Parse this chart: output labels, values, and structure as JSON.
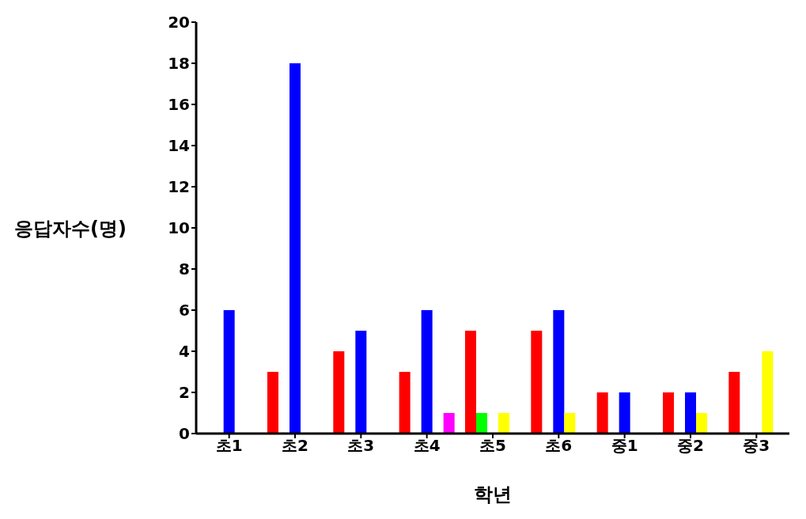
{
  "chart_data": {
    "type": "bar",
    "xlabel": "학년",
    "ylabel": "응답자수(명)",
    "categories": [
      "초1",
      "초2",
      "초3",
      "초4",
      "초5",
      "초6",
      "중1",
      "중2",
      "중3"
    ],
    "series": [
      {
        "color": "#ff0000",
        "values": [
          null,
          3,
          4,
          3,
          5,
          5,
          2,
          2,
          3
        ]
      },
      {
        "color": "#00ff00",
        "values": [
          null,
          null,
          null,
          null,
          1,
          null,
          null,
          null,
          null
        ]
      },
      {
        "color": "#0000ff",
        "values": [
          6,
          18,
          5,
          6,
          null,
          6,
          2,
          2,
          null
        ]
      },
      {
        "color": "#ffff00",
        "values": [
          null,
          null,
          null,
          null,
          1,
          1,
          null,
          1,
          4
        ]
      },
      {
        "color": "#ff00ff",
        "values": [
          null,
          null,
          null,
          1,
          null,
          null,
          null,
          null,
          null
        ]
      }
    ],
    "ylim": [
      0,
      20
    ],
    "yticks": [
      0,
      2,
      4,
      6,
      8,
      10,
      12,
      14,
      16,
      18,
      20
    ],
    "grid": false
  }
}
